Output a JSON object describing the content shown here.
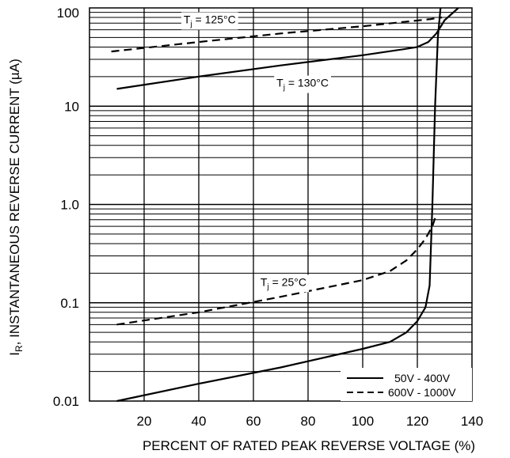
{
  "chart_data": {
    "type": "line",
    "title": "",
    "xlabel": "PERCENT OF RATED PEAK  REVERSE VOLTAGE (%)",
    "ylabel_main": "I",
    "ylabel_sub": "R",
    "ylabel_rest": ", INSTANTANEOUS REVERSE CURRENT (µA)",
    "xlim": [
      0,
      140
    ],
    "ylim": [
      0.01,
      100
    ],
    "yscale": "log",
    "grid": true,
    "legend_position": "bottom-right",
    "x_ticks": [
      {
        "value": 20,
        "label": "20"
      },
      {
        "value": 40,
        "label": "40"
      },
      {
        "value": 60,
        "label": "60"
      },
      {
        "value": 80,
        "label": "80"
      },
      {
        "value": 100,
        "label": "100"
      },
      {
        "value": 120,
        "label": "120"
      },
      {
        "value": 140,
        "label": "140"
      }
    ],
    "y_ticks": [
      {
        "value": 100,
        "label": "100"
      },
      {
        "value": 10,
        "label": "10"
      },
      {
        "value": 1,
        "label": "1.0"
      },
      {
        "value": 0.1,
        "label": "0.1"
      },
      {
        "value": 0.01,
        "label": "0.01"
      }
    ],
    "series": [
      {
        "name": "50V - 400V",
        "style": "solid",
        "condition": "T_j = 130°C",
        "x": [
          10,
          40,
          70,
          100,
          115,
          120,
          124,
          127,
          130,
          135
        ],
        "y": [
          15,
          20,
          26,
          33,
          38,
          40,
          45,
          55,
          75,
          100
        ]
      },
      {
        "name": "600V - 1000V",
        "style": "dashed",
        "condition": "T_j = 125°C",
        "x": [
          8,
          40,
          70,
          100,
          115,
          125,
          129
        ],
        "y": [
          36,
          45,
          55,
          65,
          72,
          77,
          80
        ]
      },
      {
        "name": "50V - 400V",
        "style": "solid",
        "condition": "T_j = 25°C",
        "x": [
          10,
          40,
          70,
          100,
          110,
          116,
          120,
          123,
          124.5,
          125.5,
          126.5,
          127.5,
          128.5
        ],
        "y": [
          0.01,
          0.015,
          0.022,
          0.034,
          0.04,
          0.05,
          0.065,
          0.09,
          0.15,
          1,
          10,
          50,
          100
        ]
      },
      {
        "name": "600V - 1000V",
        "style": "dashed",
        "condition": "T_j = 25°C",
        "x": [
          10,
          40,
          70,
          100,
          110,
          116,
          120,
          123,
          125.5,
          127
        ],
        "y": [
          0.06,
          0.08,
          0.115,
          0.17,
          0.21,
          0.27,
          0.35,
          0.45,
          0.6,
          0.8
        ]
      }
    ],
    "annotations": [
      {
        "main": "T",
        "sub": "j",
        "rest": " = 125°C",
        "x": 44,
        "y": 75
      },
      {
        "main": "T",
        "sub": "j",
        "rest": " = 130°C",
        "x": 78,
        "y": 17
      },
      {
        "main": "T",
        "sub": "j",
        "rest": " = 25°C",
        "x": 71,
        "y": 0.16
      }
    ],
    "legend": [
      {
        "label": "50V - 400V",
        "style": "solid"
      },
      {
        "label": "600V - 1000V",
        "style": "dashed"
      }
    ]
  }
}
